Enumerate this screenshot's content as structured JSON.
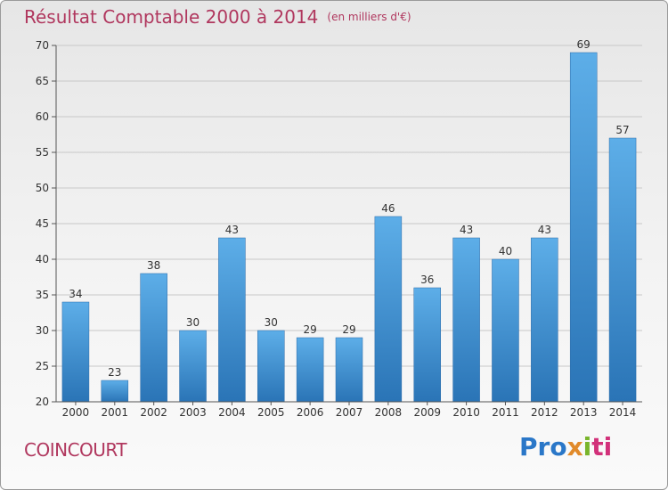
{
  "header": {
    "title": "Résultat Comptable 2000 à 2014",
    "subtitle": "(en milliers d'€)"
  },
  "footer": {
    "commune": "COINCOURT",
    "logo_parts": [
      "Pro",
      "x",
      "i",
      "ti"
    ]
  },
  "colors": {
    "title": "#b0375e",
    "bar_top": "#5daee8",
    "bar_bottom": "#2a74b6",
    "grid": "#c8c8c8"
  },
  "chart_data": {
    "type": "bar",
    "title": "Résultat Comptable 2000 à 2014",
    "xlabel": "",
    "ylabel": "",
    "categories": [
      "2000",
      "2001",
      "2002",
      "2003",
      "2004",
      "2005",
      "2006",
      "2007",
      "2008",
      "2009",
      "2010",
      "2011",
      "2012",
      "2013",
      "2014"
    ],
    "values": [
      34,
      23,
      38,
      30,
      43,
      30,
      29,
      29,
      46,
      36,
      43,
      40,
      43,
      69,
      57
    ],
    "ylim": [
      20,
      70
    ],
    "yticks": [
      20,
      25,
      30,
      35,
      40,
      45,
      50,
      55,
      60,
      65,
      70
    ],
    "grid": true,
    "data_labels": true
  }
}
